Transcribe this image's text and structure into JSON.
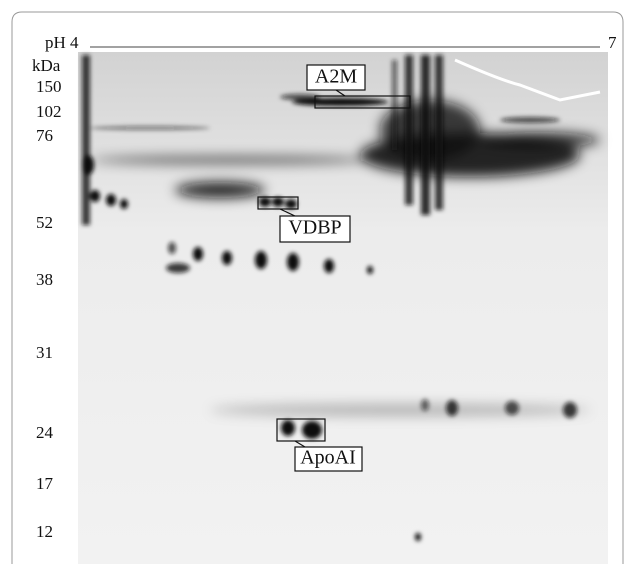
{
  "header": {
    "ph_start": "pH 4",
    "ph_end": "7",
    "unit": "kDa"
  },
  "markers": [
    "150",
    "102",
    "76",
    "52",
    "38",
    "31",
    "24",
    "17",
    "12"
  ],
  "annotations": [
    "A2M",
    "VDBP",
    "ApoAI"
  ]
}
